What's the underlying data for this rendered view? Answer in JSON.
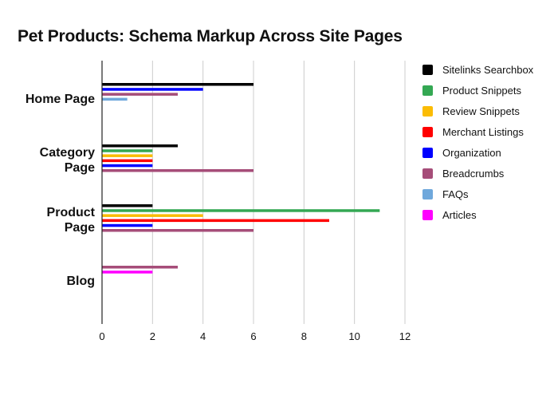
{
  "chart_data": {
    "type": "bar",
    "orientation": "horizontal",
    "title": "Pet Products: Schema Markup Across Site Pages",
    "xlabel": "",
    "ylabel": "",
    "xlim": [
      0,
      12
    ],
    "x_ticks": [
      "0",
      "2",
      "4",
      "6",
      "8",
      "10",
      "12"
    ],
    "grid": "vertical",
    "legend_position": "right",
    "categories": [
      [
        "Home Page"
      ],
      [
        "Category",
        "Page"
      ],
      [
        "Product",
        "Page"
      ],
      [
        "Blog"
      ]
    ],
    "series": [
      {
        "name": "Sitelinks Searchbox",
        "color": "#000000",
        "values": [
          6,
          3,
          2,
          0
        ]
      },
      {
        "name": "Product Snippets",
        "color": "#34a853",
        "values": [
          0,
          2,
          11,
          0
        ]
      },
      {
        "name": "Review Snippets",
        "color": "#fbbc04",
        "values": [
          0,
          2,
          4,
          0
        ]
      },
      {
        "name": "Merchant Listings",
        "color": "#ff0000",
        "values": [
          0,
          2,
          9,
          0
        ]
      },
      {
        "name": "Organization",
        "color": "#0000ff",
        "values": [
          4,
          2,
          2,
          0
        ]
      },
      {
        "name": "Breadcrumbs",
        "color": "#a64d79",
        "values": [
          3,
          6,
          6,
          3
        ]
      },
      {
        "name": "FAQs",
        "color": "#6fa8dc",
        "values": [
          1,
          0,
          0,
          0
        ]
      },
      {
        "name": "Articles",
        "color": "#ff00ff",
        "values": [
          0,
          0,
          0,
          2
        ]
      }
    ]
  }
}
